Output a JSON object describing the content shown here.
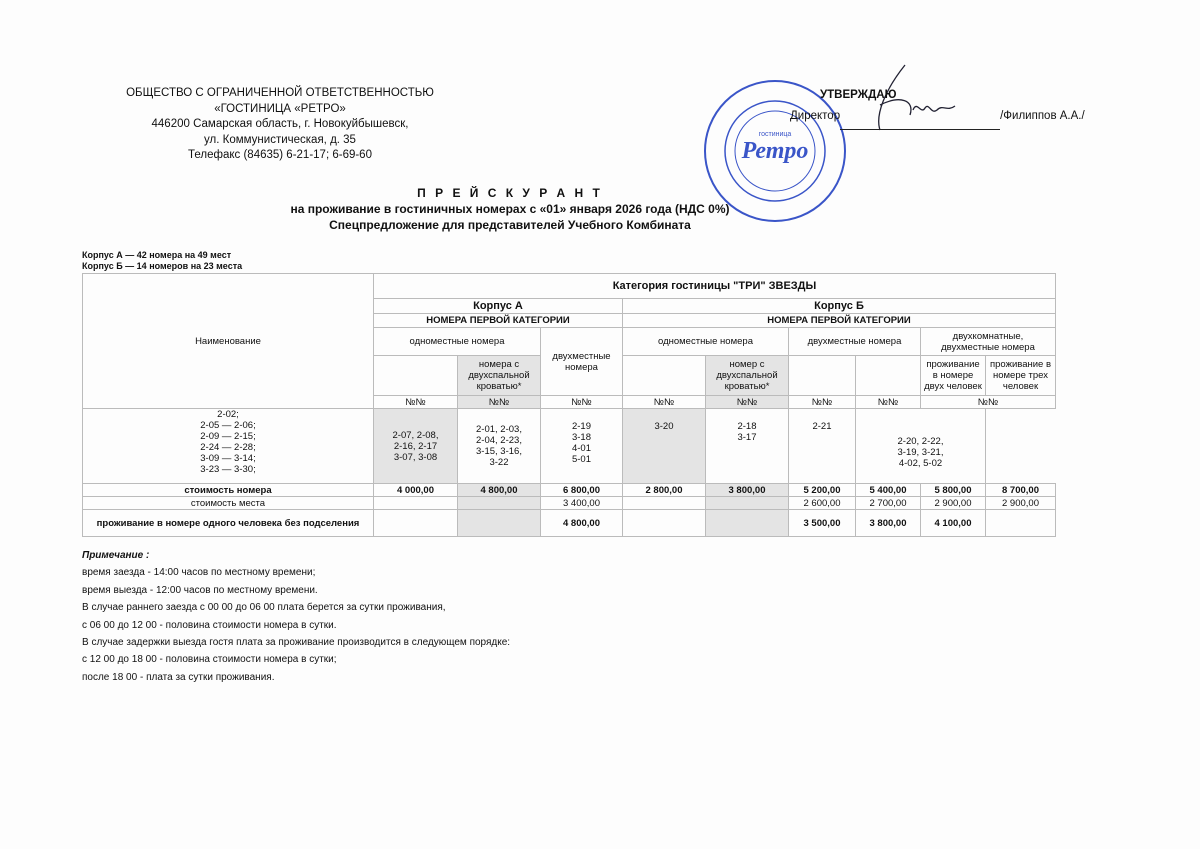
{
  "org": {
    "line1": "ОБЩЕСТВО С ОГРАНИЧЕННОЙ ОТВЕТСТВЕННОСТЬЮ",
    "line2": "«ГОСТИНИЦА «РЕТРО»",
    "line3": "446200 Самарская область, г. Новокуйбышевск,",
    "line4": "ул. Коммунистическая, д. 35",
    "line5": "Телефакс (84635) 6-21-17; 6-69-60"
  },
  "approve": {
    "label": "УТВЕРЖДАЮ",
    "role": "Директор",
    "name": "/Филиппов А.А./"
  },
  "stamp": {
    "text": "Федерация Самарская область г. Новокуйбышевск Общество с ограниченной ответственностью гостиница Ретро ИНН 6330034962 ОГРН 1076330002407",
    "logo": "Ретро"
  },
  "title": {
    "line1": "П Р Е Й С К У Р А Н Т",
    "line2": "на проживание в гостиничных номерах с «01» января 2026 года (НДС 0%)",
    "line3": "Спецпредложение для представителей Учебного Комбината"
  },
  "corpus": {
    "a": "Корпус А — 42 номера на 49 мест",
    "b": "Корпус Б — 14 номеров на 23 места"
  },
  "table": {
    "name_header": "Наименование",
    "category": "Категория гостиницы \"ТРИ\" ЗВЕЗДЫ",
    "corp_a": "Корпус А",
    "corp_b": "Корпус Б",
    "first_cat_a": "НОМЕРА ПЕРВОЙ КАТЕГОРИИ",
    "first_cat_b": "НОМЕРА ПЕРВОЙ КАТЕГОРИИ",
    "single_a": "одноместные номера",
    "double_a": "двухместные номера",
    "single_b": "одноместные номера",
    "double_b": "двухместные номера",
    "tworoom_b": "двухкомнатные, двухместные номера",
    "dbl_bed_a": "номера с двухспальной кроватью*",
    "dbl_bed_b": "номер с двухспальной кроватью*",
    "two_people": "проживание в номере двух человек",
    "three_people": "проживание в номере трех человек",
    "nn": "№№",
    "rooms": [
      "2-02;\n2-05 — 2-06;\n2-09 — 2-15;\n2-24 — 2-28;\n3-09 — 3-14;\n3-23 — 3-30;",
      "2-07, 2-08,\n2-16, 2-17\n3-07, 3-08",
      "2-01, 2-03,\n2-04, 2-23,\n3-15, 3-16,\n3-22",
      "2-19\n3-18\n4-01\n5-01",
      "3-20",
      "2-18\n3-17",
      "2-21",
      "2-20, 2-22,\n3-19, 3-21,\n4-02, 5-02"
    ],
    "rows": [
      {
        "label": "стоимость номера",
        "values": [
          "4 000,00",
          "4 800,00",
          "6 800,00",
          "2 800,00",
          "3 800,00",
          "5 200,00",
          "5 400,00",
          "5 800,00",
          "8 700,00"
        ]
      },
      {
        "label": "стоимость места",
        "values": [
          "",
          "",
          "3 400,00",
          "",
          "",
          "2 600,00",
          "2 700,00",
          "2 900,00",
          "2 900,00"
        ]
      },
      {
        "label": "проживание в номере одного человека без подселения",
        "values": [
          "",
          "",
          "4 800,00",
          "",
          "",
          "3 500,00",
          "3 800,00",
          "4 100,00",
          ""
        ]
      }
    ]
  },
  "notes": {
    "title": "Примечание :",
    "lines": [
      "время заезда  - 14:00 часов по местному времени;",
      "время выезда - 12:00 часов по местному времени.",
      "В случае раннего заезда с 00 00 до 06 00  плата берется за сутки проживания,",
      "с 06 00 до 12 00 - половина стоимости номера в сутки.",
      "В случае задержки выезда гостя  плата за проживание производится в следующем порядке:",
      "с 12 00 до 18 00 - половина стоимости номера в сутки;",
      "после 18 00 - плата за сутки проживания."
    ]
  },
  "colors": {
    "stamp": "#3a55c8",
    "shade": "#e4e4e4"
  }
}
